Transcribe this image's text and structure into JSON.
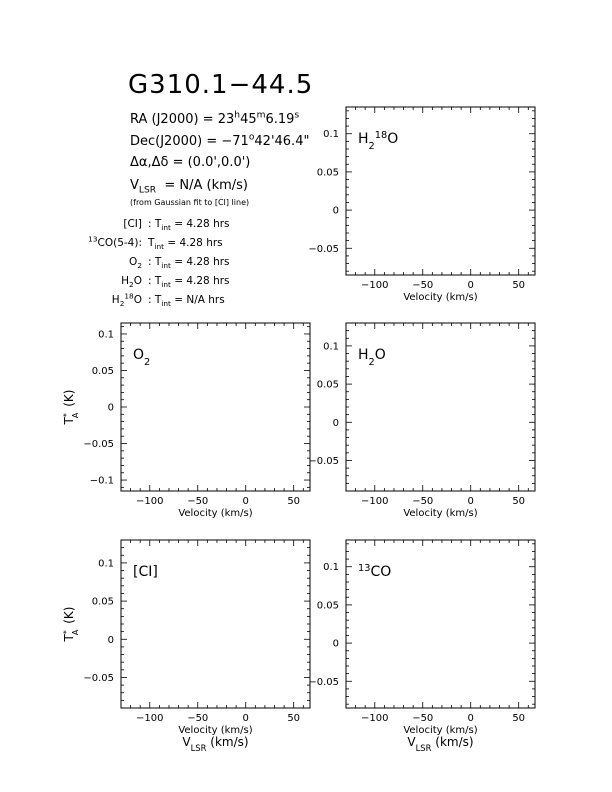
{
  "title": "G310.1−44.5",
  "source_info": {
    "ra_label": "RA (J2000)  = ",
    "ra_h": "23",
    "ra_m": "45",
    "ra_s": "6.19",
    "dec_label": "Dec(J2000)  = ",
    "dec_d": "−71",
    "dec_m": "42",
    "dec_s": "46.4",
    "offset_label": "Δα,Δδ = (0.0',0.0')",
    "vlsr_value": "= N/A  (km/s)",
    "vlsr_note": "(from Gaussian fit to [CI] line)"
  },
  "integration_times": [
    {
      "line": "[CI]",
      "value": "= 4.28 hrs"
    },
    {
      "line": "13CO(5-4):",
      "value": "= 4.28 hrs"
    },
    {
      "line": "O2 :",
      "value": "= 4.28 hrs"
    },
    {
      "line": "H2O :",
      "value": "= 4.28 hrs"
    },
    {
      "line": "H218O :",
      "value": "= N/A  hrs"
    }
  ],
  "colors": {
    "line": "#000000",
    "axis": "#000000",
    "background": "#ffffff"
  },
  "chart_data": [
    {
      "id": "h218o",
      "type": "line",
      "label": "H2 18O",
      "empty": true,
      "xlim": [
        -130,
        67
      ],
      "ylim": [
        -0.085,
        0.135
      ],
      "xticks": [
        -100,
        -50,
        0,
        50
      ],
      "yticks": [
        -0.05,
        0,
        0.05,
        0.1
      ],
      "xlabel": "Velocity (km/s)",
      "ylabel": "",
      "vlsr_label": false,
      "x": [],
      "y": []
    },
    {
      "id": "o2",
      "type": "line",
      "label": "O2",
      "xlim": [
        -130,
        67
      ],
      "ylim": [
        -0.115,
        0.115
      ],
      "xticks": [
        -100,
        -50,
        0,
        50
      ],
      "yticks": [
        -0.1,
        -0.05,
        0,
        0.05,
        0.1
      ],
      "xlabel": "Velocity (km/s)",
      "ylabel": "T*A (K)",
      "vlsr_label": false,
      "x": [],
      "y": []
    },
    {
      "id": "h2o",
      "type": "line",
      "label": "H2O",
      "xlim": [
        -130,
        67
      ],
      "ylim": [
        -0.09,
        0.13
      ],
      "xticks": [
        -100,
        -50,
        0,
        50
      ],
      "yticks": [
        -0.05,
        0,
        0.05,
        0.1
      ],
      "xlabel": "Velocity (km/s)",
      "ylabel": "",
      "vlsr_label": false,
      "x": [],
      "y": []
    },
    {
      "id": "ci",
      "type": "line",
      "label": "[CI]",
      "xlim": [
        -130,
        67
      ],
      "ylim": [
        -0.09,
        0.13
      ],
      "xticks": [
        -100,
        -50,
        0,
        50
      ],
      "yticks": [
        -0.05,
        0,
        0.05,
        0.1
      ],
      "xlabel": "Velocity (km/s)",
      "ylabel": "T*A (K)",
      "vlsr_label": true,
      "x": [],
      "y": []
    },
    {
      "id": "co13",
      "type": "line",
      "label": "13CO",
      "xlim": [
        -130,
        67
      ],
      "ylim": [
        -0.085,
        0.135
      ],
      "xticks": [
        -100,
        -50,
        0,
        50
      ],
      "yticks": [
        -0.05,
        0,
        0.05,
        0.1
      ],
      "xlabel": "Velocity (km/s)",
      "ylabel": "",
      "vlsr_label": true,
      "x": [],
      "y": []
    }
  ]
}
